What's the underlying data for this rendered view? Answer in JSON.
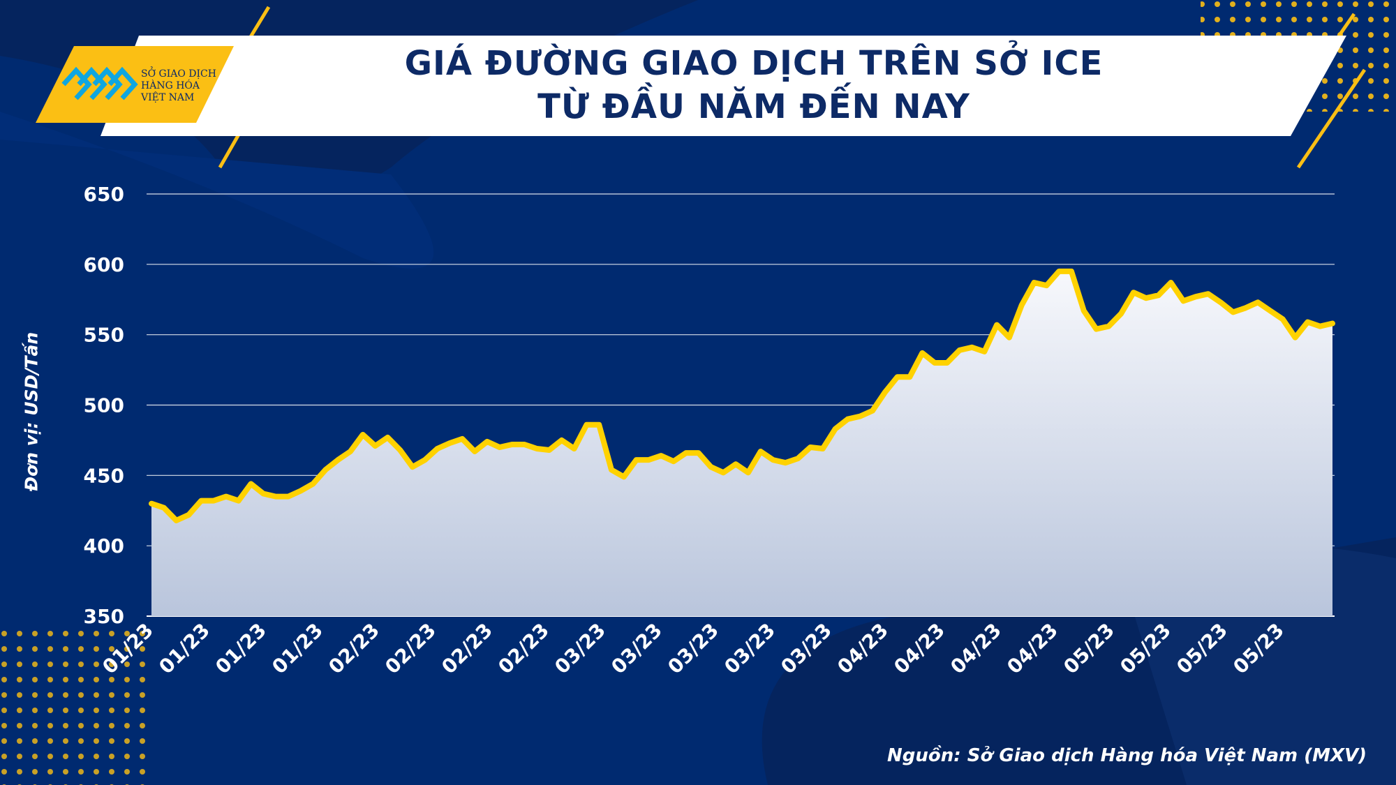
{
  "title_line1": "GIÁ ĐƯỜNG GIAO DỊCH TRÊN SỞ ICE",
  "title_line2": "TỪ ĐẦU NĂM ĐẾN NAY",
  "logo": {
    "line1": "SỞ GIAO DỊCH",
    "line2": "HÀNG HÓA",
    "line3": "VIỆT NAM"
  },
  "source": "Nguồn: Sở Giao dịch Hàng hóa Việt Nam (MXV)",
  "colors": {
    "background": "#002a70",
    "line": "#ffd200",
    "accent": "#fbbf14",
    "title": "#0d2a66"
  },
  "chart_data": {
    "type": "area",
    "title": "GIÁ ĐƯỜNG GIAO DỊCH TRÊN SỞ ICE TỪ ĐẦU NĂM ĐẾN NAY",
    "ylabel": "Đơn vị: USD/Tấn",
    "xlabel": "",
    "ylim": [
      350,
      650
    ],
    "yticks": [
      650,
      600,
      550,
      500,
      450,
      400,
      350
    ],
    "grid": true,
    "xtick_labels": [
      "01/23",
      "01/23",
      "01/23",
      "01/23",
      "02/23",
      "02/23",
      "02/23",
      "02/23",
      "03/23",
      "03/23",
      "03/23",
      "03/23",
      "03/23",
      "04/23",
      "04/23",
      "04/23",
      "04/23",
      "05/23",
      "05/23",
      "05/23",
      "05/23"
    ],
    "values": [
      430,
      427,
      418,
      422,
      432,
      432,
      435,
      432,
      444,
      437,
      435,
      435,
      439,
      444,
      454,
      461,
      467,
      479,
      471,
      477,
      468,
      456,
      461,
      469,
      473,
      476,
      467,
      474,
      470,
      472,
      472,
      469,
      468,
      475,
      469,
      486,
      486,
      454,
      449,
      461,
      461,
      464,
      460,
      466,
      466,
      456,
      452,
      458,
      452,
      467,
      461,
      459,
      462,
      470,
      469,
      483,
      490,
      492,
      496,
      509,
      520,
      520,
      537,
      530,
      530,
      539,
      541,
      538,
      557,
      548,
      571,
      587,
      585,
      595,
      595,
      567,
      554,
      556,
      565,
      580,
      576,
      578,
      587,
      574,
      577,
      579,
      573,
      566,
      569,
      573,
      567,
      561,
      548,
      559,
      556,
      558
    ]
  }
}
